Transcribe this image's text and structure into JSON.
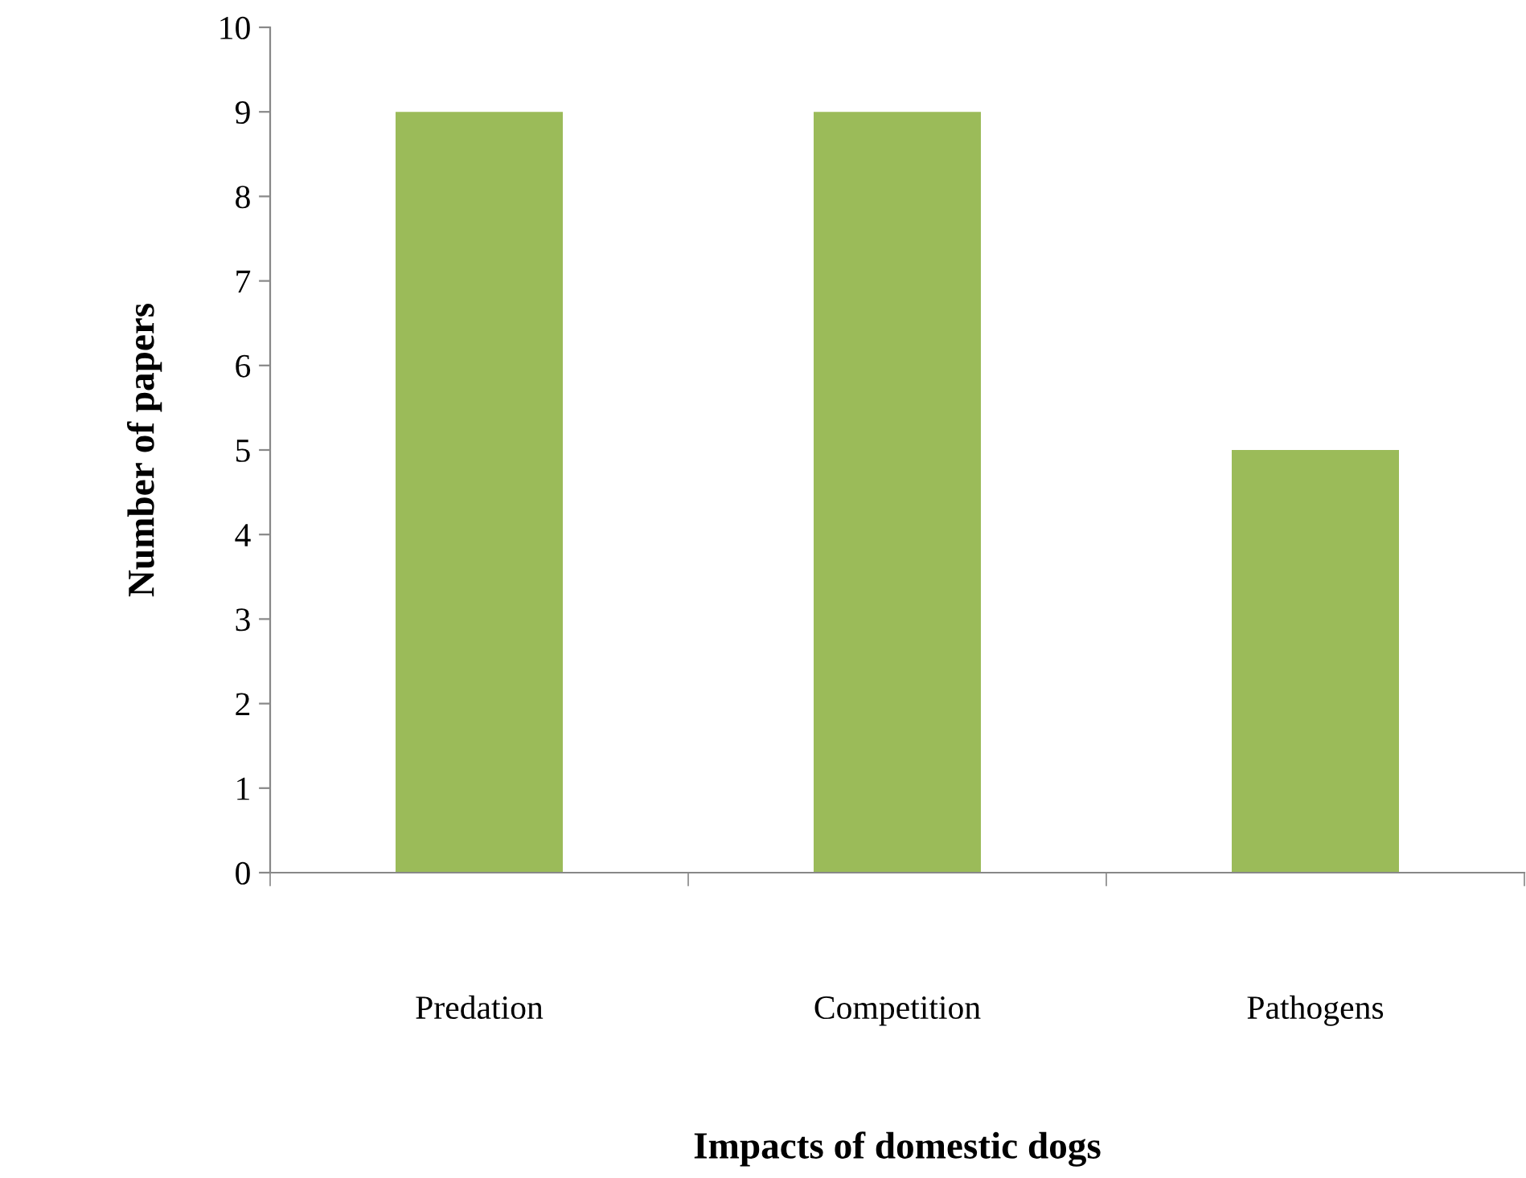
{
  "chart_data": {
    "type": "bar",
    "xlabel": "Impacts of domestic dogs",
    "ylabel": "Number of papers",
    "categories": [
      "Predation",
      "Competition",
      "Pathogens"
    ],
    "values": [
      9,
      9,
      5
    ],
    "color": "#9bbb59",
    "ylim": [
      0,
      10
    ],
    "yticks": [
      0,
      1,
      2,
      3,
      4,
      5,
      6,
      7,
      8,
      9,
      10
    ],
    "grid": false,
    "legend": false
  }
}
